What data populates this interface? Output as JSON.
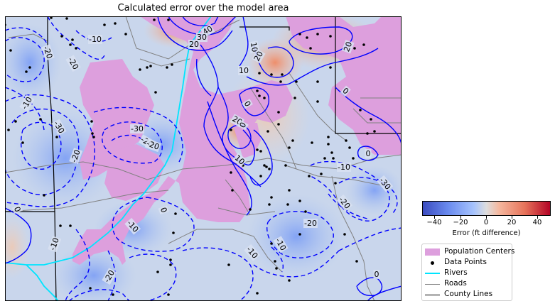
{
  "title": "Calculated error over the model area",
  "colorbar": {
    "label": "Error (ft difference)",
    "ticks": [
      "−40",
      "−20",
      "0",
      "20",
      "40"
    ],
    "range": [
      -50,
      50
    ],
    "colormap": "coolwarm"
  },
  "legend": [
    {
      "label": "Population Centers",
      "kind": "patch",
      "color": "#dd9fdd"
    },
    {
      "label": "Data Points",
      "kind": "dot",
      "color": "#000000"
    },
    {
      "label": "Rivers",
      "kind": "line",
      "color": "#00e5ff"
    },
    {
      "label": "Roads",
      "kind": "line",
      "color": "#808080"
    },
    {
      "label": "County Lines",
      "kind": "line",
      "color": "#000000"
    }
  ],
  "contour_labels": [
    "40",
    "30",
    "20",
    "10",
    "10",
    "20",
    "20",
    "0",
    "0",
    "20",
    "10",
    "0",
    "-10",
    "-20",
    "-10",
    "-30",
    "-20",
    "-30",
    "-20",
    "-10",
    "-30",
    "-20",
    "0",
    "0",
    "-10",
    "-10",
    "-20",
    "-10",
    "-10",
    "-20",
    "0",
    "-20",
    "0",
    "-20"
  ],
  "colors": {
    "contour": "#0000ff",
    "population": "#dd9fdd",
    "river": "#00e5ff",
    "road": "#808080",
    "county": "#000000",
    "points": "#000000"
  }
}
